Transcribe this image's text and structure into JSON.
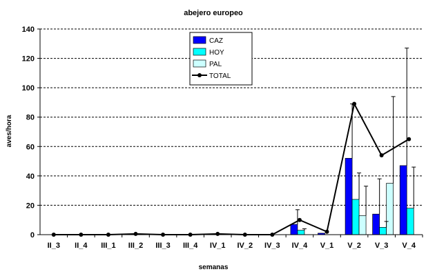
{
  "chart_data": {
    "type": "bar",
    "title": "abejero europeo",
    "xlabel": "semanas",
    "ylabel": "aves/hora",
    "ylim": [
      0,
      140
    ],
    "yticks": [
      0,
      20,
      40,
      60,
      80,
      100,
      120,
      140
    ],
    "grid": "horizontal dashed",
    "legend_position": "top-center",
    "categories": [
      "II_3",
      "II_4",
      "III_1",
      "III_2",
      "III_3",
      "III_4",
      "IV_1",
      "IV_2",
      "IV_3",
      "IV_4",
      "V_1",
      "V_2",
      "V_3",
      "V_4"
    ],
    "tick_labels": [
      "II_3",
      "II_4",
      "III_1",
      "III_2",
      "III_3",
      "III_4",
      "IV_1",
      "IV_2",
      "IV_3",
      "IV_4",
      "V_1",
      "V_2",
      "V_3",
      "V_4"
    ],
    "series": [
      {
        "name": "CAZ",
        "kind": "bar",
        "color": "#0000ff",
        "values": [
          0,
          0,
          0,
          0,
          0,
          0,
          0,
          0,
          0,
          7,
          1,
          52,
          14,
          47
        ],
        "error": [
          0,
          0,
          0,
          0,
          0,
          0,
          0,
          0,
          0,
          10,
          0,
          37,
          24,
          80
        ]
      },
      {
        "name": "HOY",
        "kind": "bar",
        "color": "#00ffff",
        "values": [
          0,
          0,
          0,
          0,
          0,
          0,
          0,
          0,
          0,
          3,
          0,
          24,
          5,
          18
        ],
        "error": [
          0,
          0,
          0,
          0,
          0,
          0,
          0,
          0,
          0,
          1,
          0,
          18,
          4,
          28
        ]
      },
      {
        "name": "PAL",
        "kind": "bar",
        "color": "#ccffff",
        "values": [
          0,
          0,
          0,
          0,
          0,
          0,
          0,
          0,
          0,
          0,
          0,
          13,
          35,
          0
        ],
        "error": [
          0,
          0,
          0,
          0,
          0,
          0,
          0,
          0,
          0,
          0,
          0,
          20,
          59,
          0
        ]
      },
      {
        "name": "TOTAL",
        "kind": "line",
        "color": "#000000",
        "values": [
          0,
          0,
          0,
          0.5,
          0,
          0,
          0.5,
          0,
          0,
          10,
          2,
          89,
          54,
          65
        ]
      }
    ]
  }
}
